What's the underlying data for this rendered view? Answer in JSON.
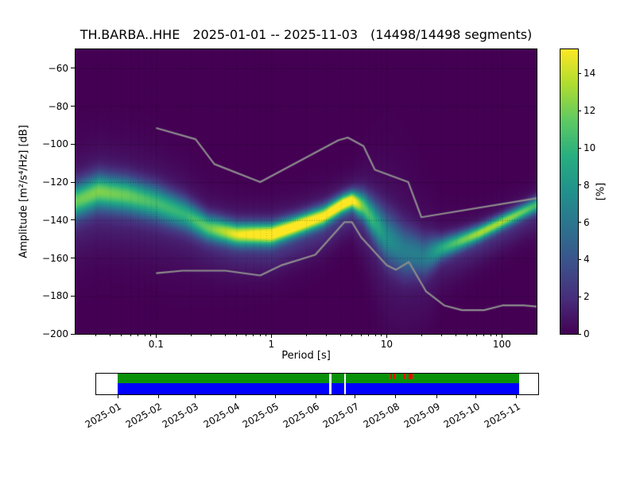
{
  "title": {
    "station": "TH.BARBA..HHE",
    "date_range": "2025-01-01 -- 2025-11-03",
    "segments": "(14498/14498 segments)"
  },
  "colors": {
    "heat_background": "#440154",
    "noise_model_gray": "#8d8d8d",
    "coverage_green": "#0a910a",
    "coverage_blue": "#0000ff",
    "gap_red": "#ff0000",
    "axis_black": "#000000"
  },
  "chart_data": {
    "type": "heatmap",
    "title": "TH.BARBA..HHE  2025-01-01 -- 2025-11-03  (14498/14498 segments)",
    "xlabel": "Period [s]",
    "ylabel": "Amplitude [m²/s⁴/Hz] [dB]",
    "colorbar_label": "[%]",
    "x_scale": "log",
    "xlim": [
      0.02,
      200
    ],
    "ylim": [
      -200,
      -50
    ],
    "clim": [
      0,
      15.3
    ],
    "x_ticks": [
      0.1,
      1,
      10,
      100
    ],
    "x_tick_labels": [
      "0.1",
      "1",
      "10",
      "100"
    ],
    "y_ticks": [
      -200,
      -180,
      -160,
      -140,
      -120,
      -100,
      -80,
      -60
    ],
    "y_tick_labels": [
      "−200",
      "−180",
      "−160",
      "−140",
      "−120",
      "−100",
      "−80",
      "−60"
    ],
    "colorbar_ticks": [
      0,
      2,
      4,
      6,
      8,
      10,
      12,
      14
    ],
    "colorbar_tick_labels": [
      "0",
      "2",
      "4",
      "6",
      "8",
      "10",
      "12",
      "14"
    ],
    "grid": true,
    "ppsd_mode": {
      "log_period": [
        -1.7,
        -1.5,
        -1.25,
        -1.0,
        -0.75,
        -0.55,
        -0.3,
        0.0,
        0.2,
        0.45,
        0.62,
        0.7,
        0.8,
        1.0,
        1.15,
        1.33,
        1.47,
        1.64,
        1.8,
        2.0,
        2.2,
        2.3
      ],
      "db": [
        -130,
        -125,
        -127,
        -131,
        -137,
        -144,
        -147.5,
        -147.5,
        -143.5,
        -138,
        -131.5,
        -129.5,
        -133,
        -149,
        -156,
        -159,
        -155,
        -151,
        -147,
        -141,
        -135,
        -132
      ],
      "peak_percent": [
        10,
        10.5,
        10,
        9,
        8.5,
        10,
        13,
        15,
        15,
        14,
        15,
        14.5,
        10,
        6.5,
        5.5,
        5.5,
        8,
        10,
        11.5,
        11.5,
        10,
        9
      ],
      "spread_db": [
        6,
        6,
        6,
        6,
        5.5,
        4.5,
        4,
        3.8,
        3.5,
        3.5,
        3.2,
        3.2,
        5,
        9,
        9,
        7,
        4,
        3.2,
        2.8,
        2.6,
        2.6,
        2.8
      ],
      "halo_amp_ratio": 0.18,
      "halo_offset_db": -4,
      "halo_spread_ratio": 2.8
    },
    "noise_models": {
      "nhnm": {
        "period": [
          0.1,
          0.22,
          0.32,
          0.8,
          3.8,
          4.6,
          6.3,
          7.9,
          15.4,
          20,
          200
        ],
        "db": [
          -91.5,
          -97.4,
          -110.5,
          -120.0,
          -98.0,
          -96.5,
          -101.0,
          -113.5,
          -120.0,
          -138.5,
          -128.5
        ]
      },
      "nlnm": {
        "period": [
          0.1,
          0.17,
          0.4,
          0.8,
          1.24,
          2.4,
          4.3,
          5,
          6,
          10,
          12,
          15.6,
          21.9,
          31.6,
          45,
          70,
          101,
          154,
          200
        ],
        "db": [
          -168.0,
          -166.7,
          -166.7,
          -169.2,
          -163.7,
          -158.3,
          -141.1,
          -141.1,
          -149.0,
          -163.8,
          -166.2,
          -162.1,
          -177.5,
          -185.0,
          -187.5,
          -187.5,
          -185.0,
          -185.0,
          -185.6
        ]
      }
    },
    "viridis_stops": [
      "#440154",
      "#472d7b",
      "#3b528b",
      "#2c728e",
      "#21918c",
      "#28ae80",
      "#5ec962",
      "#addc30",
      "#fde725"
    ]
  },
  "timeline": {
    "month_labels": [
      "2025-01",
      "2025-02",
      "2025-03",
      "2025-04",
      "2025-05",
      "2025-06",
      "2025-07",
      "2025-08",
      "2025-09",
      "2025-10",
      "2025-11"
    ],
    "month_day_offsets": [
      0,
      31,
      59,
      90,
      120,
      151,
      181,
      212,
      243,
      273,
      304
    ],
    "span_days": 306,
    "coverage_start_day": 0,
    "coverage_end_day": 306,
    "gaps_days": [
      {
        "day": 162,
        "width_days": 1.8
      },
      {
        "day": 173.5,
        "width_days": 1.2
      }
    ],
    "red_marks_days": [
      {
        "day": 208,
        "width_days": 1.2
      },
      {
        "day": 210.5,
        "width_days": 1.2
      },
      {
        "day": 218,
        "width_days": 1.2
      },
      {
        "day": 221.5,
        "width_days": 3.5
      }
    ]
  }
}
